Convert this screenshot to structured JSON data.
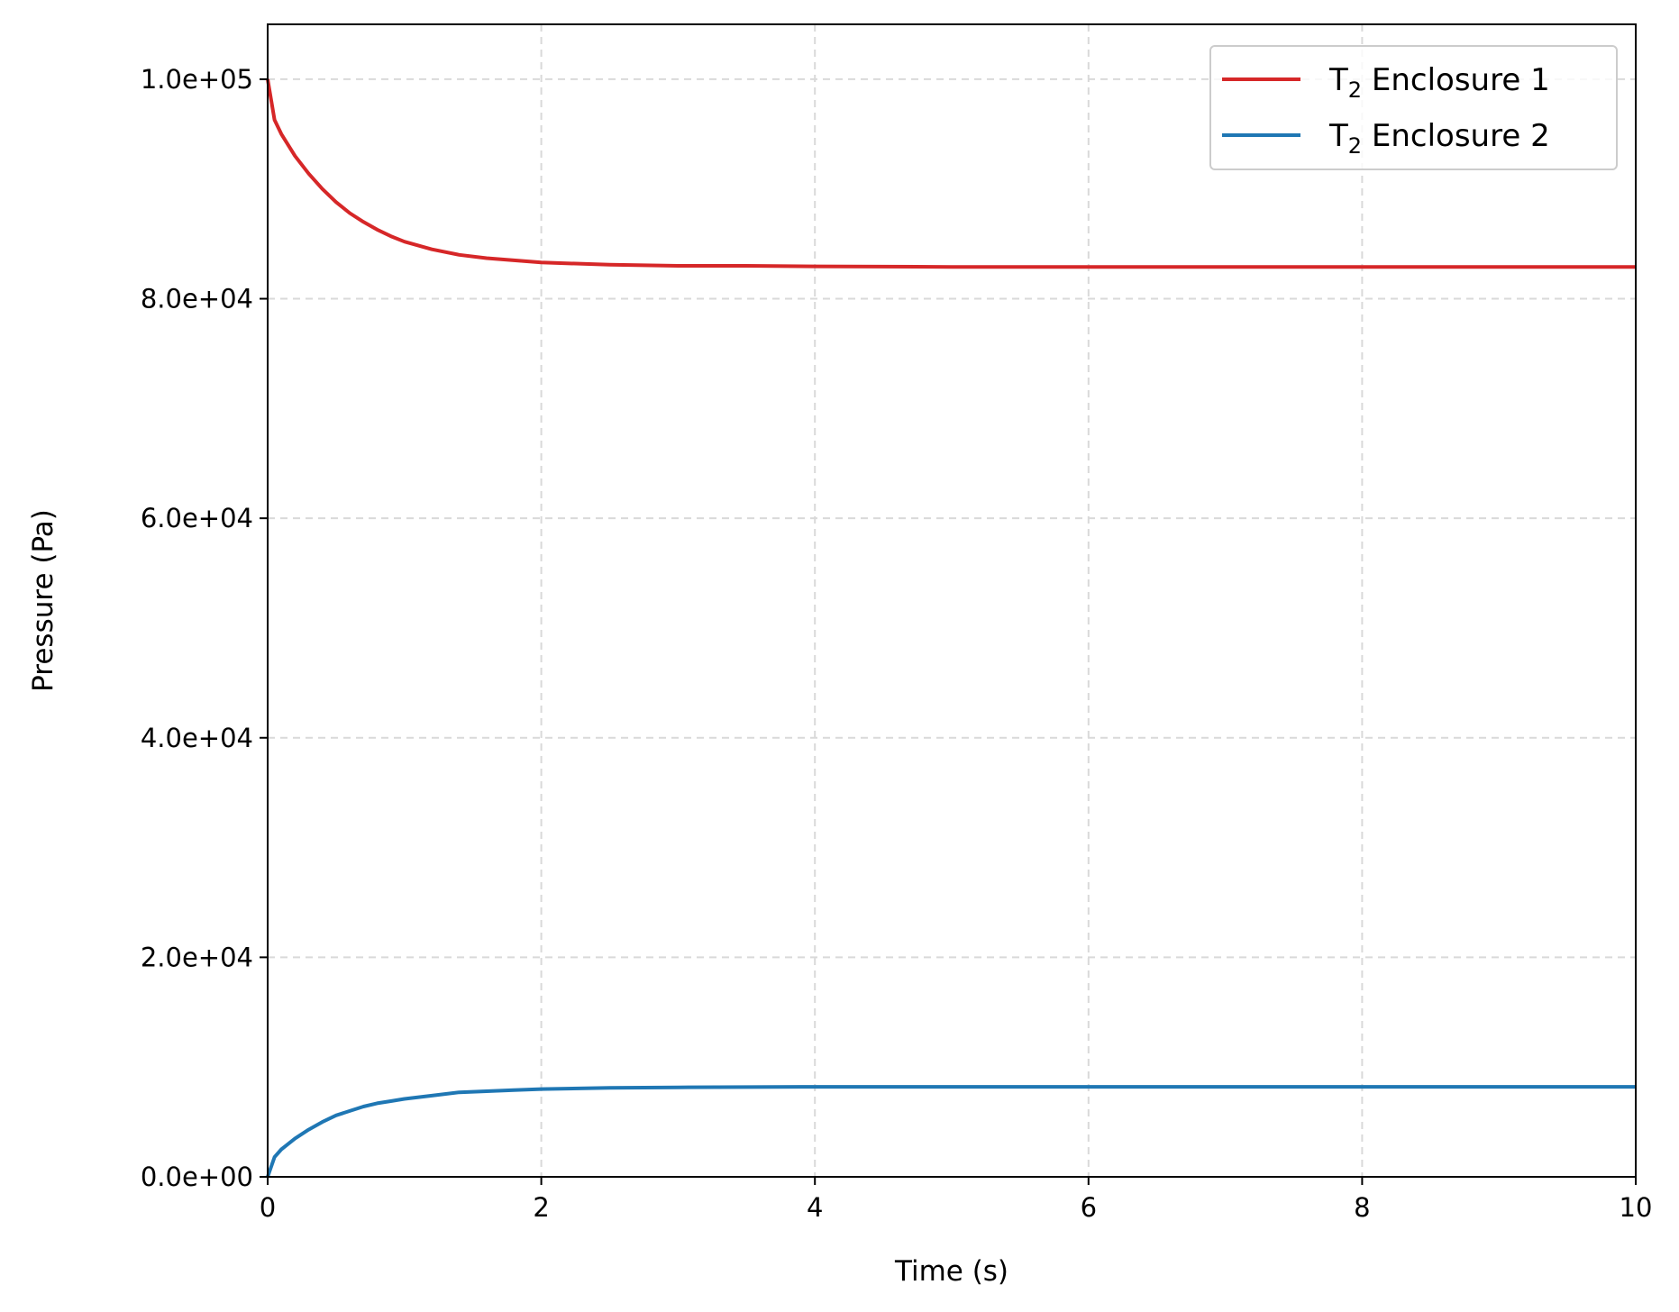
{
  "chart_data": {
    "type": "line",
    "xlabel": "Time (s)",
    "ylabel": "Pressure (Pa)",
    "xlim": [
      0,
      10
    ],
    "ylim": [
      0,
      105000
    ],
    "grid": true,
    "legend_position": "top-right",
    "x_ticks": [
      {
        "value": 0,
        "label": "0"
      },
      {
        "value": 2,
        "label": "2"
      },
      {
        "value": 4,
        "label": "4"
      },
      {
        "value": 6,
        "label": "6"
      },
      {
        "value": 8,
        "label": "8"
      },
      {
        "value": 10,
        "label": "10"
      }
    ],
    "y_ticks": [
      {
        "value": 0,
        "label": "0.0e+00"
      },
      {
        "value": 20000,
        "label": "2.0e+04"
      },
      {
        "value": 40000,
        "label": "4.0e+04"
      },
      {
        "value": 60000,
        "label": "6.0e+04"
      },
      {
        "value": 80000,
        "label": "8.0e+04"
      },
      {
        "value": 100000,
        "label": "1.0e+05"
      }
    ],
    "x": [
      0,
      0.05,
      0.1,
      0.2,
      0.3,
      0.4,
      0.5,
      0.6,
      0.7,
      0.8,
      0.9,
      1.0,
      1.2,
      1.4,
      1.6,
      1.8,
      2.0,
      2.5,
      3.0,
      3.5,
      4.0,
      5.0,
      6.0,
      7.0,
      8.0,
      9.0,
      10.0
    ],
    "series": [
      {
        "name": "T",
        "name_sub": "2",
        "name_rest": " Enclosure 1",
        "color": "#d62728",
        "values": [
          100000,
          96300,
          95000,
          93000,
          91400,
          90000,
          88800,
          87800,
          87000,
          86300,
          85700,
          85200,
          84500,
          84000,
          83700,
          83500,
          83300,
          83100,
          83000,
          83000,
          82950,
          82900,
          82900,
          82900,
          82900,
          82900,
          82900
        ]
      },
      {
        "name": "T",
        "name_sub": "2",
        "name_rest": " Enclosure 2",
        "color": "#1f77b4",
        "values": [
          0,
          1800,
          2500,
          3500,
          4300,
          5000,
          5600,
          6000,
          6400,
          6700,
          6900,
          7100,
          7400,
          7700,
          7800,
          7900,
          8000,
          8100,
          8150,
          8180,
          8200,
          8200,
          8200,
          8200,
          8200,
          8200,
          8200
        ]
      }
    ]
  }
}
